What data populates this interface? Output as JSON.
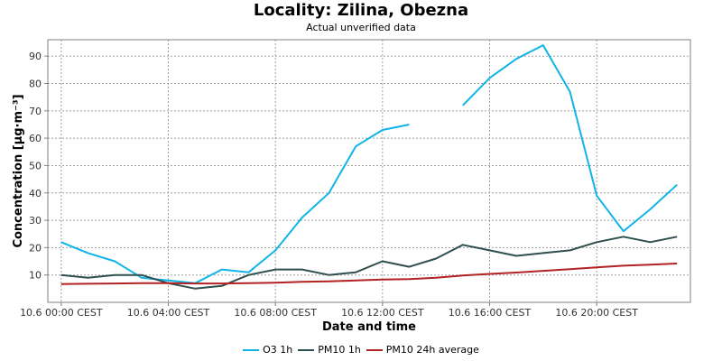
{
  "chart_data": {
    "type": "line",
    "title": "Locality: Zilina, Obezna",
    "subtitle": "Actual unverified data",
    "xlabel": "Date and time",
    "ylabel": "Concentration [µg·m⁻³]",
    "ylim": [
      0,
      96
    ],
    "yticks": [
      10,
      20,
      30,
      40,
      50,
      60,
      70,
      80,
      90
    ],
    "xlim": [
      -0.5,
      23.5
    ],
    "xticks": [
      {
        "x": 0,
        "label": "10.6 00:00 CEST"
      },
      {
        "x": 4,
        "label": "10.6 04:00 CEST"
      },
      {
        "x": 8,
        "label": "10.6 08:00 CEST"
      },
      {
        "x": 12,
        "label": "10.6 12:00 CEST"
      },
      {
        "x": 16,
        "label": "10.6 16:00 CEST"
      },
      {
        "x": 20,
        "label": "10.6 20:00 CEST"
      }
    ],
    "grid": true,
    "legend_position": "bottom",
    "x": [
      0,
      1,
      2,
      3,
      4,
      5,
      6,
      7,
      8,
      9,
      10,
      11,
      12,
      13,
      14,
      15,
      16,
      17,
      18,
      19,
      20,
      21,
      22,
      23
    ],
    "series": [
      {
        "name": "O3 1h",
        "color": "#11b4e8",
        "values": [
          22,
          18,
          15,
          9,
          8,
          7,
          12,
          11,
          19,
          31,
          40,
          57,
          63,
          65,
          null,
          72,
          82,
          89,
          94,
          77,
          39,
          26,
          34,
          43
        ]
      },
      {
        "name": "PM10 1h",
        "color": "#2f4f4f",
        "values": [
          10,
          9,
          10,
          10,
          7,
          5,
          6,
          10,
          12,
          12,
          10,
          11,
          15,
          13,
          16,
          21,
          19,
          17,
          18,
          19,
          22,
          24,
          22,
          24
        ]
      },
      {
        "name": "PM10 24h average",
        "color": "#b22222",
        "values": [
          6.7,
          6.8,
          6.9,
          7.0,
          7.0,
          6.9,
          6.9,
          7.0,
          7.2,
          7.5,
          7.7,
          8.0,
          8.3,
          8.5,
          9.0,
          9.8,
          10.4,
          10.9,
          11.5,
          12.1,
          12.8,
          13.4,
          13.8,
          14.2
        ]
      }
    ]
  }
}
